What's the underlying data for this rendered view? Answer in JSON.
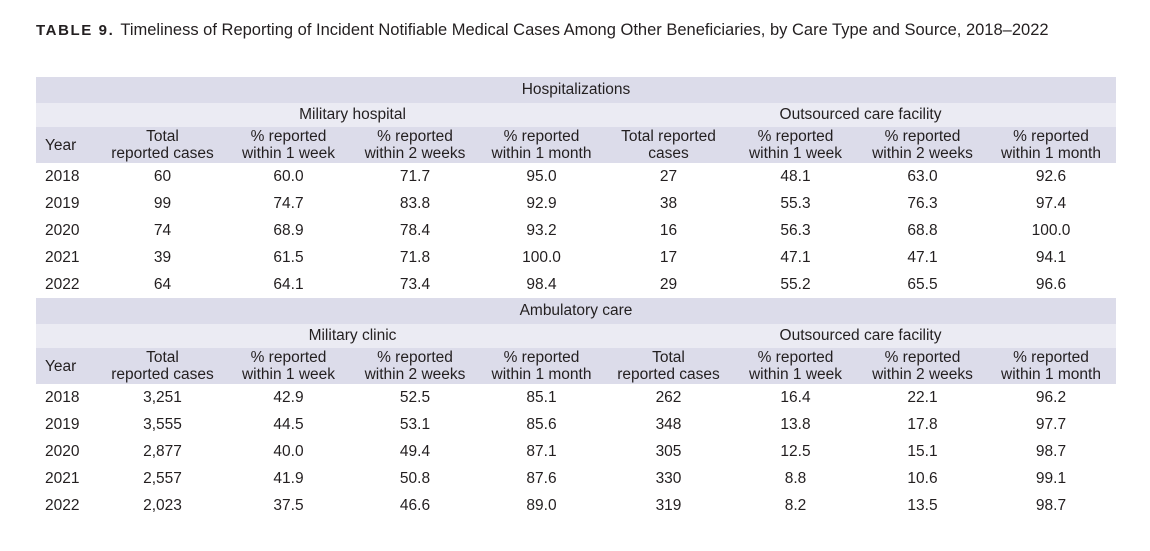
{
  "title": {
    "label": "TABLE 9.",
    "text": "Timeliness of Reporting of Incident Notifiable Medical Cases Among Other Beneficiaries, by Care Type and Source, 2018–2022"
  },
  "sections": [
    {
      "name": "Hospitalizations",
      "group_left": "Military hospital",
      "group_right": "Outsourced care facility",
      "headers": [
        [
          "Year"
        ],
        [
          "Total",
          "reported cases"
        ],
        [
          "% reported",
          "within 1 week"
        ],
        [
          "% reported",
          "within 2 weeks"
        ],
        [
          "% reported",
          "within 1 month"
        ],
        [
          "Total reported",
          "cases"
        ],
        [
          "% reported",
          "within 1 week"
        ],
        [
          "% reported",
          "within 2 weeks"
        ],
        [
          "% reported",
          "within 1 month"
        ]
      ],
      "rows": [
        [
          "2018",
          "60",
          "60.0",
          "71.7",
          "95.0",
          "27",
          "48.1",
          "63.0",
          "92.6"
        ],
        [
          "2019",
          "99",
          "74.7",
          "83.8",
          "92.9",
          "38",
          "55.3",
          "76.3",
          "97.4"
        ],
        [
          "2020",
          "74",
          "68.9",
          "78.4",
          "93.2",
          "16",
          "56.3",
          "68.8",
          "100.0"
        ],
        [
          "2021",
          "39",
          "61.5",
          "71.8",
          "100.0",
          "17",
          "47.1",
          "47.1",
          "94.1"
        ],
        [
          "2022",
          "64",
          "64.1",
          "73.4",
          "98.4",
          "29",
          "55.2",
          "65.5",
          "96.6"
        ]
      ]
    },
    {
      "name": "Ambulatory care",
      "group_left": "Military clinic",
      "group_right": "Outsourced care facility",
      "headers": [
        [
          "Year"
        ],
        [
          "Total",
          "reported cases"
        ],
        [
          "% reported",
          "within 1 week"
        ],
        [
          "% reported",
          "within 2 weeks"
        ],
        [
          "% reported",
          "within 1 month"
        ],
        [
          "Total",
          "reported cases"
        ],
        [
          "% reported",
          "within 1 week"
        ],
        [
          "% reported",
          "within 2 weeks"
        ],
        [
          "% reported",
          "within 1 month"
        ]
      ],
      "rows": [
        [
          "2018",
          "3,251",
          "42.9",
          "52.5",
          "85.1",
          "262",
          "16.4",
          "22.1",
          "96.2"
        ],
        [
          "2019",
          "3,555",
          "44.5",
          "53.1",
          "85.6",
          "348",
          "13.8",
          "17.8",
          "97.7"
        ],
        [
          "2020",
          "2,877",
          "40.0",
          "49.4",
          "87.1",
          "305",
          "12.5",
          "15.1",
          "98.7"
        ],
        [
          "2021",
          "2,557",
          "41.9",
          "50.8",
          "87.6",
          "330",
          "8.8",
          "10.6",
          "99.1"
        ],
        [
          "2022",
          "2,023",
          "37.5",
          "46.6",
          "89.0",
          "319",
          "8.2",
          "13.5",
          "98.7"
        ]
      ]
    }
  ]
}
